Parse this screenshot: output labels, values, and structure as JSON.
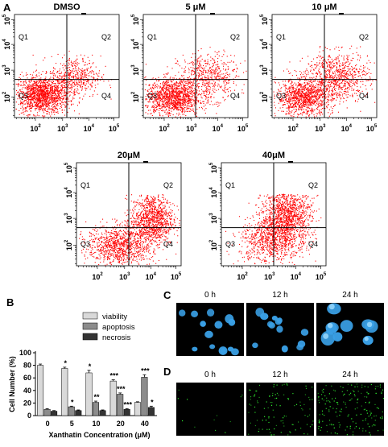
{
  "panel_labels": {
    "a": "A",
    "b": "B",
    "c": "C",
    "d": "D"
  },
  "flow_axis_ticks": [
    {
      "base": "10",
      "exp": "2"
    },
    {
      "base": "10",
      "exp": "3"
    },
    {
      "base": "10",
      "exp": "4"
    },
    {
      "base": "10",
      "exp": "5"
    }
  ],
  "quadrant_labels": [
    "Q1",
    "Q2",
    "Q3",
    "Q4"
  ],
  "flow_panels": [
    {
      "title": "DMSO"
    },
    {
      "title": "5 μM"
    },
    {
      "title": "10 μM"
    },
    {
      "title": "20μM"
    },
    {
      "title": "40μM"
    }
  ],
  "colors": {
    "dots": "#ff0000",
    "viability": "#d9d9d9",
    "apoptosis": "#8c8c8c",
    "necrosis": "#333333",
    "nuclei": "#3aa0e6",
    "dead_cells": "#33ff33"
  },
  "chart_data": {
    "type": "bar",
    "title": "",
    "xlabel": "Xanthatin Concentration (μM)",
    "ylabel": "Cell Number (%)",
    "ylim": [
      0,
      100
    ],
    "yticks": [
      "0",
      "20",
      "40",
      "60",
      "80",
      "100"
    ],
    "categories": [
      "0",
      "5",
      "10",
      "20",
      "40"
    ],
    "legend_position": "top-right",
    "series": [
      {
        "name": "viability",
        "values": [
          80,
          75,
          68,
          55,
          21
        ],
        "errors": [
          2,
          2,
          4,
          2,
          1
        ],
        "stars": [
          "",
          "*",
          "*",
          "***",
          ""
        ]
      },
      {
        "name": "apoptosis",
        "values": [
          10,
          14,
          21,
          34,
          61
        ],
        "errors": [
          1,
          1,
          2,
          2,
          4
        ],
        "stars": [
          "",
          "*",
          "**",
          "***",
          "***"
        ]
      },
      {
        "name": "necrosis",
        "values": [
          7,
          8,
          8,
          10,
          13
        ],
        "errors": [
          1,
          1,
          1,
          1,
          2
        ],
        "stars": [
          "",
          "",
          "",
          "***",
          "*"
        ]
      }
    ]
  },
  "microscopy": {
    "times": [
      "0 h",
      "12 h",
      "24 h"
    ]
  }
}
